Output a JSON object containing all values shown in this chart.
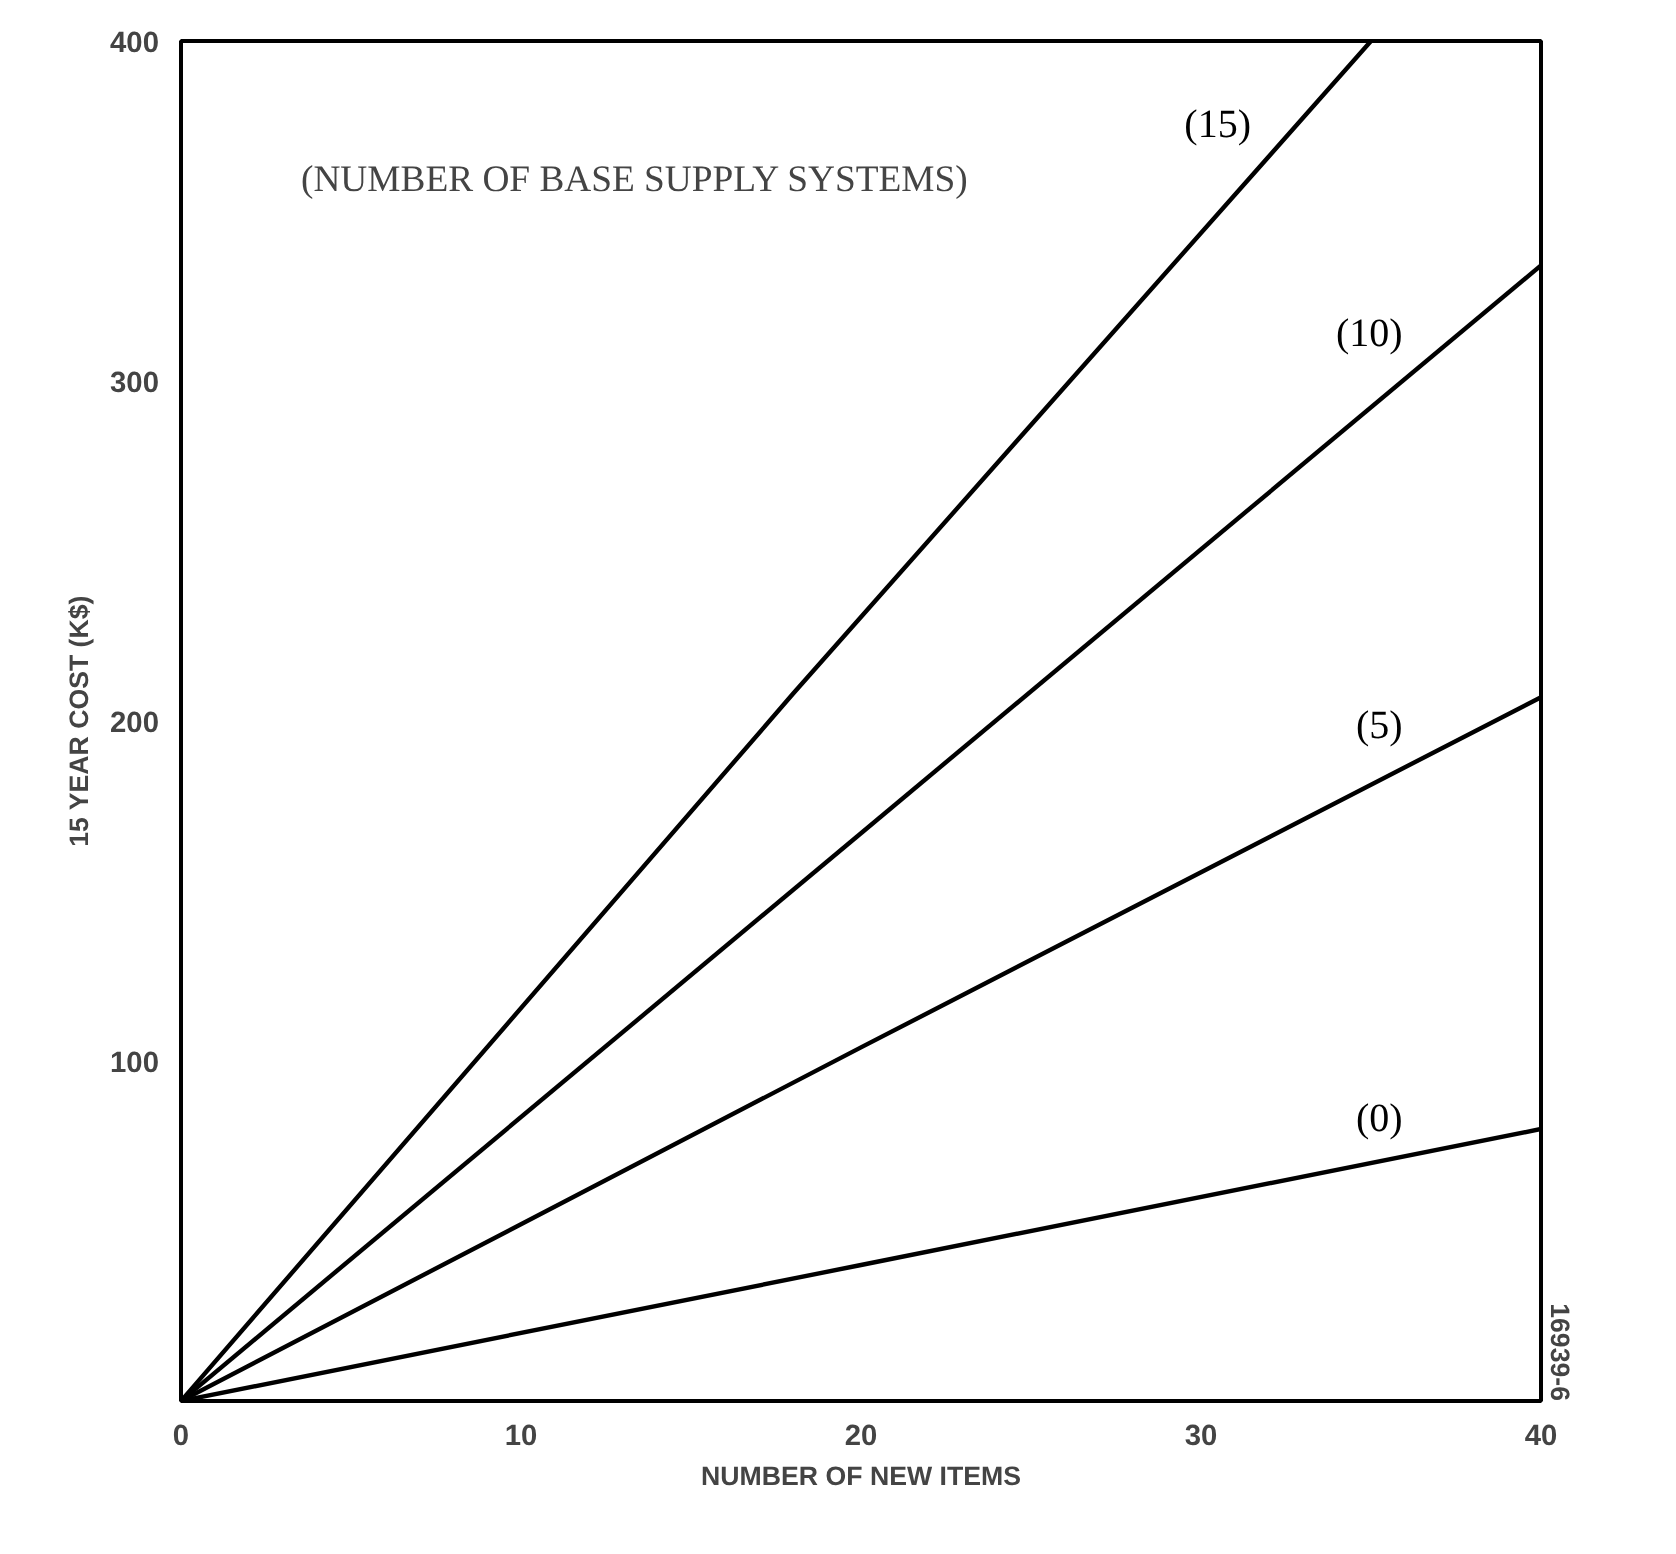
{
  "chart_data": {
    "type": "line",
    "xlabel": "NUMBER OF NEW ITEMS",
    "ylabel": "15 YEAR COST (K$)",
    "annotations": [
      "(NUMBER OF BASE SUPPLY SYSTEMS)",
      "16939-6"
    ],
    "series": [
      {
        "name": "(15)",
        "color": "#000000",
        "x": [
          0,
          18,
          35
        ],
        "values": [
          0,
          208,
          400
        ]
      },
      {
        "name": "(10)",
        "color": "#000000",
        "x": [
          0,
          20,
          40
        ],
        "values": [
          0,
          167,
          334
        ]
      },
      {
        "name": "(5)",
        "color": "#000000",
        "x": [
          0,
          20,
          40
        ],
        "values": [
          0,
          104,
          207
        ]
      },
      {
        "name": "(0)",
        "color": "#000000",
        "x": [
          0,
          20,
          40
        ],
        "values": [
          0,
          40,
          80
        ]
      }
    ],
    "xlim": [
      0,
      40
    ],
    "ylim": [
      0,
      400
    ],
    "xticks": [
      0,
      10,
      20,
      30,
      40
    ],
    "yticks": [
      100,
      200,
      300,
      400
    ],
    "grid": false,
    "legend": false,
    "line_style": "solid"
  }
}
